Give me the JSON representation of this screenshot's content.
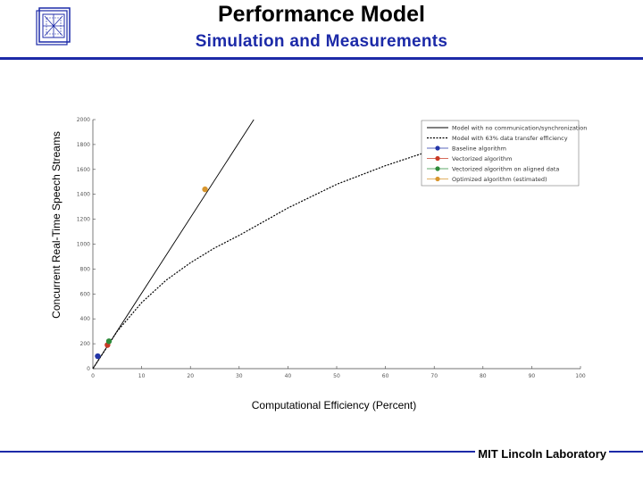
{
  "header": {
    "title": "Performance Model",
    "subtitle": "Simulation and Measurements",
    "logo_icon": "mit-ll-logo-icon"
  },
  "footer": {
    "text": "MIT Lincoln Laboratory"
  },
  "colors": {
    "accent": "#1c2aa8"
  },
  "chart_data": {
    "type": "line",
    "title": "",
    "xlabel": "Computational Efficiency (Percent)",
    "ylabel": "Concurrent Real-Time Speech Streams",
    "xlim": [
      0,
      100
    ],
    "ylim": [
      0,
      2000
    ],
    "x_ticks": [
      0,
      10,
      20,
      30,
      40,
      50,
      60,
      70,
      80,
      90,
      100
    ],
    "y_ticks": [
      0,
      200,
      400,
      600,
      800,
      1000,
      1200,
      1400,
      1600,
      1800,
      2000
    ],
    "y_tick_labels": [
      "0",
      "200",
      "400",
      "600",
      "800",
      "1000",
      "1200",
      "1400",
      "1600",
      "1800",
      "2000"
    ],
    "grid": false,
    "legend_position": "top-right",
    "series": [
      {
        "name": "Model with no communication/synchronization",
        "kind": "line",
        "style": "solid",
        "color": "#000000",
        "x": [
          0,
          33
        ],
        "y": [
          0,
          2000
        ]
      },
      {
        "name": "Model with 63% data transfer efficiency",
        "kind": "line",
        "style": "dotted",
        "color": "#000000",
        "x": [
          0,
          3,
          5,
          10,
          15,
          20,
          25,
          30,
          40,
          50,
          60,
          70,
          80
        ],
        "y": [
          0,
          180,
          300,
          530,
          710,
          850,
          970,
          1070,
          1290,
          1480,
          1630,
          1760,
          1870
        ]
      },
      {
        "name": "Baseline algorithm",
        "kind": "point",
        "color": "#2436a8",
        "x": [
          1
        ],
        "y": [
          100
        ]
      },
      {
        "name": "Vectorized algorithm",
        "kind": "point",
        "color": "#c83a26",
        "x": [
          3
        ],
        "y": [
          190
        ]
      },
      {
        "name": "Vectorized algorithm on aligned data",
        "kind": "point",
        "color": "#2e8b3a",
        "x": [
          3.3
        ],
        "y": [
          220
        ]
      },
      {
        "name": "Optimized algorithm (estimated)",
        "kind": "point",
        "color": "#d8962e",
        "x": [
          23
        ],
        "y": [
          1440
        ]
      }
    ]
  }
}
